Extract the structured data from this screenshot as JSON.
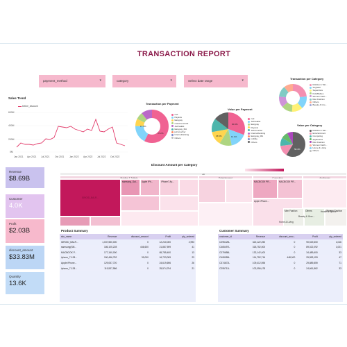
{
  "report": {
    "title": "TRANSACTION REPORT"
  },
  "filters": [
    {
      "label": "payment_method"
    },
    {
      "label": "category"
    },
    {
      "label": "Select date range"
    }
  ],
  "sales_trend": {
    "title": "Sales Trend",
    "legend": "before_discount",
    "y_ticks": [
      "600M",
      "400M",
      "200M",
      "0M"
    ],
    "x_ticks": [
      "Jan 2021",
      "Apr 2021",
      "Jul 2021",
      "Oct 2021",
      "Jan 2022",
      "Apr 2022",
      "Jul 2022",
      "Oct 2022"
    ]
  },
  "transaction_per_payment": {
    "title": "Transaction per Payment",
    "legend": [
      "cod",
      "Payaxis",
      "Easypay",
      "customercredit",
      "Jazzwallet",
      "Easypay_MA",
      "jazzvoucher",
      "Internetbanking",
      "Others"
    ],
    "labels": [
      "17.5%",
      "57.2%"
    ]
  },
  "value_per_payment": {
    "title": "Value per Payment",
    "legend": [
      "cod",
      "Jazzwallet",
      "Easypay",
      "Payaxis",
      "Jazzvoucher",
      "Internetbanking",
      "Easypay_MA",
      "mcblite",
      "Others"
    ],
    "labels": [
      "30.3%",
      "15.5%",
      "11.1%"
    ]
  },
  "transaction_per_category": {
    "title": "Transaction per Category",
    "legend": [
      "Mobiles & Tab...",
      "Soghaat",
      "Superstore",
      "Kids/Babies",
      "Women Fash...",
      "Men Fashion",
      "Others",
      "Beauty & Gro..."
    ]
  },
  "value_per_category": {
    "title": "Value per Category",
    "legend": [
      "Mobiles & Tab...",
      "Entertainment",
      "Computing",
      "Appliances",
      "Men Fashion",
      "Women Fashi...",
      "Home & Living",
      "Others"
    ],
    "labels": [
      "58.4%"
    ]
  },
  "kpis": [
    {
      "label": "Revenue",
      "value": "$8.69B",
      "color": "#c9c2ee"
    },
    {
      "label": "Customer",
      "value": "4.0K",
      "color": "#e2c4ef"
    },
    {
      "label": "Profit",
      "value": "$2.03B",
      "color": "#f7b9cc"
    },
    {
      "label": "discount_amount",
      "value": "$33.83M",
      "color": "#bcd6f5"
    },
    {
      "label": "Quantity",
      "value": "13.6K",
      "color": "#c2dcf7"
    }
  ],
  "treemap": {
    "title": "Discount Amount per Category",
    "all_label": "All",
    "categories": [
      "Mobiles & Tablets",
      "Entertainment",
      "Computing",
      "Appliances"
    ],
    "big_cell": "IDROID_BALR...",
    "mid_labels": [
      "samsung_Gal...",
      "Apple iPh...",
      "iPhone7 Ap...",
      "MACBOOK PR...",
      "MACBOOK PR...",
      "Apple iPhone..."
    ],
    "bottom_labels": [
      "Men Fashion",
      "Others",
      "Women Fashion",
      "Home & Living",
      "Health & Sports",
      "Beauty & Groc..."
    ]
  },
  "product_summary": {
    "title": "Product Summary",
    "columns": [
      "sku_name",
      "Revenue",
      "discount_amount",
      "Profit",
      "qty_ordered"
    ],
    "rows": [
      [
        "IDROID_BALR...",
        "1,037,550,000",
        "0",
        "12,240,000",
        "2,993"
      ],
      [
        "samsung(SM...",
        "186,105,228",
        "446,600",
        "21,887,599",
        "41"
      ],
      [
        "MACBOOK P...",
        "177,160,000",
        "0",
        "65,785,400",
        "13"
      ],
      [
        "iphone_7-128...",
        "150,456,752",
        "39,000",
        "16,733,009",
        "23"
      ],
      [
        "Apple iPhone...",
        "129,057,720",
        "0",
        "24,619,696",
        "26"
      ],
      [
        "iphone_7-128...",
        "119,537,586",
        "0",
        "25,574,794",
        "21"
      ]
    ]
  },
  "customer_summary": {
    "title": "Customer Summary",
    "columns": [
      "customer_id",
      "Revenue",
      "discount_amo...",
      "Profit",
      "qty_ordered"
    ],
    "rows": [
      [
        "C295125L",
        "322,122,250",
        "0",
        "90,519,600",
        "1,016"
      ],
      [
        "C465497L",
        "318,752,000",
        "0",
        "89,022,092",
        "1,001"
      ],
      [
        "C079658L",
        "132,142,400",
        "0",
        "34,489,600",
        "33"
      ],
      [
        "C408059L",
        "114,752,716",
        "448,000",
        "25,553,153",
        "47"
      ],
      [
        "C374672L",
        "109,412,596",
        "0",
        "29,889,859",
        "71"
      ],
      [
        "C295711L",
        "102,056,478",
        "0",
        "24,661,862",
        "33"
      ]
    ]
  },
  "colors": {
    "title": "#8b1a4a",
    "filter_bg": "#f6b9cd",
    "trend_line": "#e23b6a",
    "treemap_main": "#c2185b",
    "table_header": "#d8d0f0"
  }
}
